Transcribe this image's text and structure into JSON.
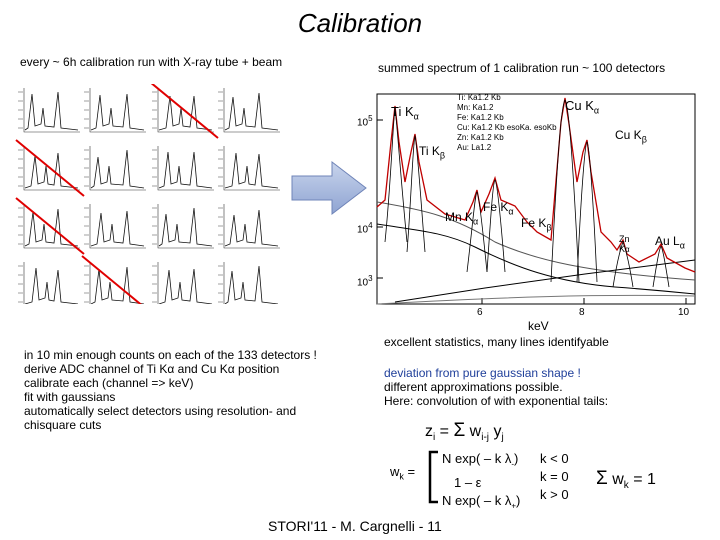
{
  "title": "Calibration",
  "left_caption": "every ~ 6h calibration run with X-ray tube + beam",
  "right_caption": "summed spectrum of 1 calibration run ~ 100 detectors",
  "spectrum": {
    "peak_labels": {
      "ti_ka": "Ti K",
      "ti_kb": "Ti K",
      "mn_ka": "Mn K",
      "fe_ka": "Fe K",
      "fe_kb": "Fe K",
      "cu_ka": "Cu K",
      "cu_kb": "Cu K",
      "zn_ka": "Zn K",
      "au_la": "Au L"
    },
    "greek": {
      "alpha": "α",
      "beta": "β"
    },
    "legend_lines": [
      "Ti: Ka1.2  Kb",
      "Mn: Ka1.2",
      "Fe: Ka1.2  Kb",
      "Cu: Ka1.2  Kb esoKa. esoKb",
      "Zn: Ka1.2  Kb",
      "Au: La1.2"
    ],
    "y_ticks": [
      "10",
      "10",
      "10"
    ],
    "y_exponents": [
      "5",
      "4",
      "3"
    ],
    "x_ticks": [
      "6",
      "8",
      "10"
    ],
    "x_label": "keV",
    "stats_caption": "excellent statistics, many lines identifyable"
  },
  "left_notes": [
    "in 10 min enough counts on each of the 133 detectors !",
    "derive ADC channel of Ti Kα  and Cu Kα position",
    "calibrate each (channel => keV)",
    "fit with gaussians",
    "automatically select detectors using resolution- and",
    "chisquare cuts"
  ],
  "right_notes": {
    "deviation": "deviation from pure gaussian shape !",
    "approx": "different approximations possible.",
    "here": "Here:  convolution of with exponential tails:"
  },
  "formula": {
    "lhs": "z",
    "lhs_sub": "i",
    "eq": " = ",
    "sigma": "Σ",
    "w": " w",
    "w_sub": "i-j",
    "y": "  y",
    "y_sub": "j"
  },
  "piecewise": {
    "lhs": "w",
    "lhs_sub": "k",
    "eq": " =",
    "row1": "N exp( – k λ",
    "row1_sub": "-",
    "row1_close": ")",
    "row1_cond": "k < 0",
    "row2": "1 – ε",
    "row2_cond": "k = 0",
    "row3": "N exp( – k λ",
    "row3_sub": "+",
    "row3_close": ")",
    "row3_cond": "k > 0"
  },
  "sum_rule": {
    "sigma": "Σ",
    "w": " w",
    "sub": "k",
    "rest": "  = 1"
  },
  "footer": "STORI'11 - M. Cargnelli - 11"
}
